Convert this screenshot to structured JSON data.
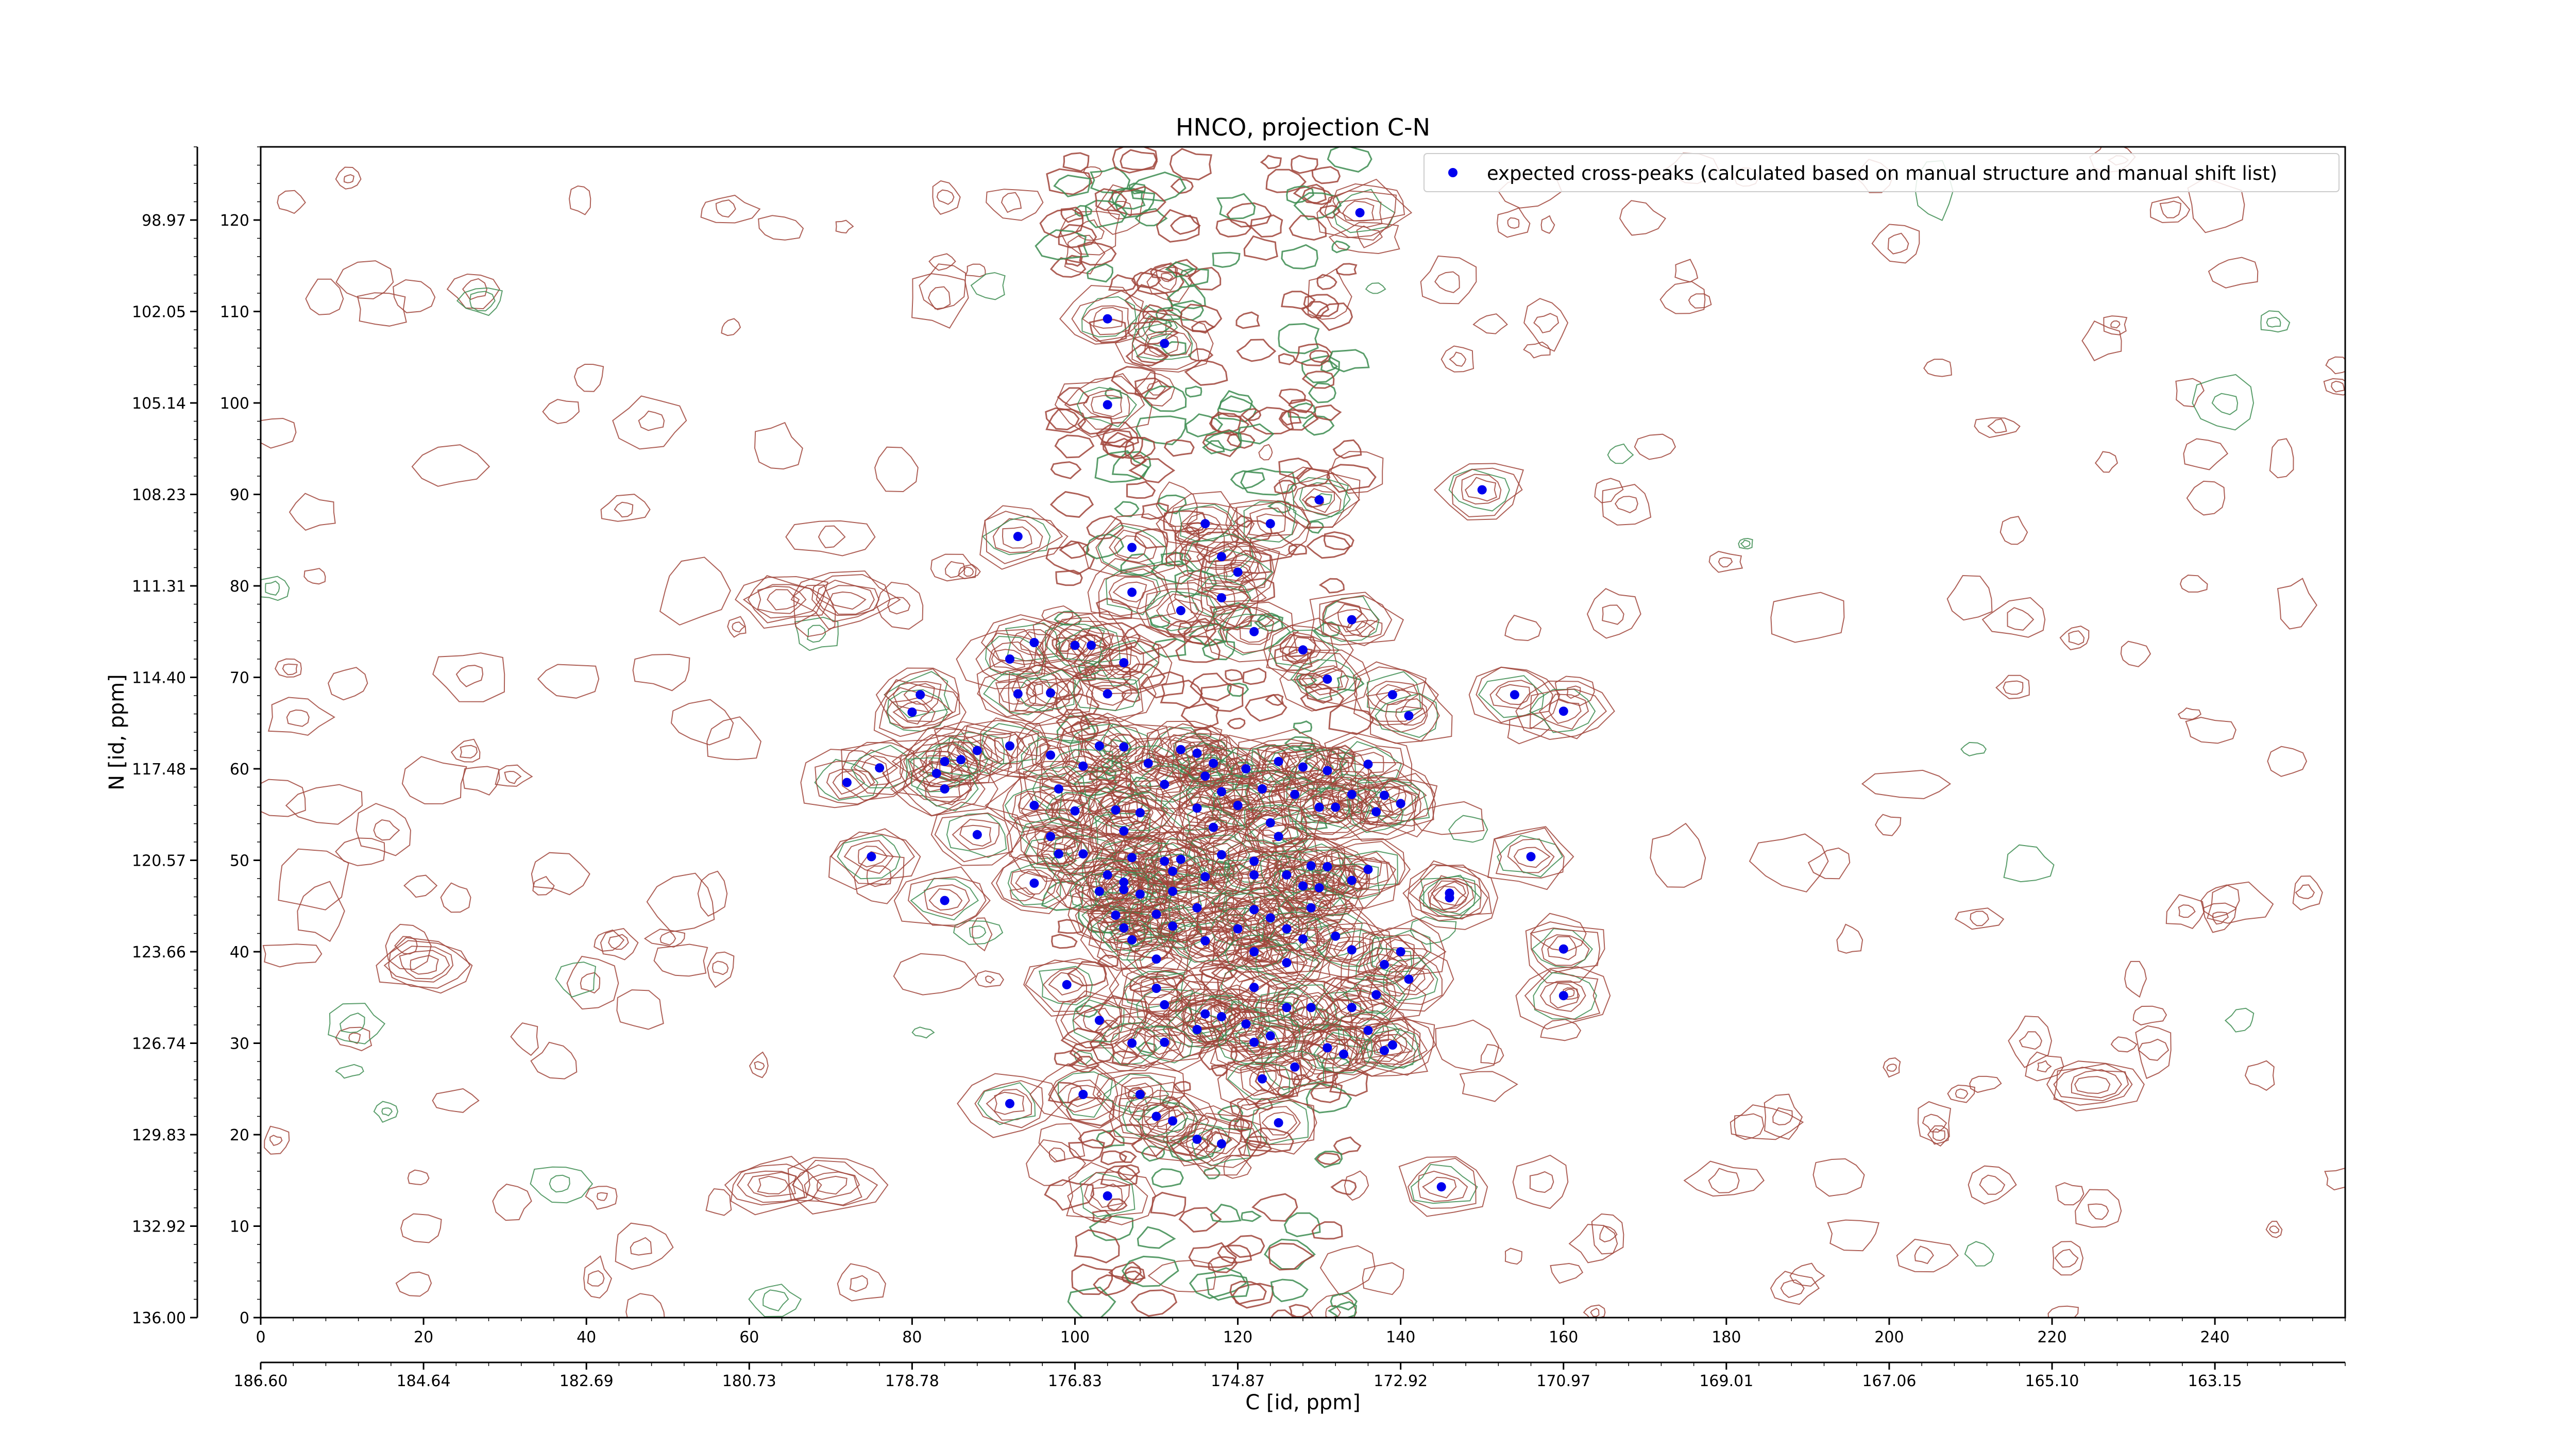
{
  "chart_data": {
    "type": "scatter",
    "title": "HNCO, projection C-N",
    "xlabel": "C [id, ppm]",
    "ylabel": "N [id, ppm]",
    "xlim": [
      0,
      256
    ],
    "ylim": [
      0,
      128
    ],
    "x_ticks": [
      0,
      20,
      40,
      60,
      80,
      100,
      120,
      140,
      160,
      180,
      200,
      220,
      240
    ],
    "y_ticks": [
      0,
      10,
      20,
      30,
      40,
      50,
      60,
      70,
      80,
      90,
      100,
      110,
      120
    ],
    "x_ppm_ticks": [
      "186.60",
      "184.64",
      "182.69",
      "180.73",
      "178.78",
      "176.83",
      "174.87",
      "172.92",
      "170.97",
      "169.01",
      "167.06",
      "165.10",
      "163.15"
    ],
    "y_ppm_ticks": [
      "136.00",
      "132.92",
      "129.83",
      "126.74",
      "123.66",
      "120.57",
      "117.48",
      "114.40",
      "111.31",
      "108.23",
      "105.14",
      "102.05",
      "98.97"
    ],
    "legend": {
      "label": "expected cross-peaks (calculated based on manual structure and manual shift list)",
      "position": "top-right"
    },
    "grid": false,
    "colors": {
      "peaks": "#0000ee",
      "positive_contour": "#a0443a",
      "negative_contour": "#3c8c50"
    },
    "series": [
      {
        "name": "expected cross-peaks (calculated based on manual structure and manual shift list)",
        "points": [
          [
            135,
            120.8
          ],
          [
            104,
            109.2
          ],
          [
            111,
            106.5
          ],
          [
            104,
            99.8
          ],
          [
            150,
            90.5
          ],
          [
            130,
            89.4
          ],
          [
            93,
            85.4
          ],
          [
            116,
            86.8
          ],
          [
            124,
            86.8
          ],
          [
            107,
            84.2
          ],
          [
            118,
            83.2
          ],
          [
            107,
            79.3
          ],
          [
            120,
            81.5
          ],
          [
            118,
            78.7
          ],
          [
            113,
            77.3
          ],
          [
            134,
            76.3
          ],
          [
            95,
            73.8
          ],
          [
            100,
            73.5
          ],
          [
            102,
            73.5
          ],
          [
            92,
            72.0
          ],
          [
            122,
            75.0
          ],
          [
            128,
            73.0
          ],
          [
            106,
            71.6
          ],
          [
            131,
            69.8
          ],
          [
            81,
            68.1
          ],
          [
            93,
            68.2
          ],
          [
            97,
            68.3
          ],
          [
            104,
            68.2
          ],
          [
            139,
            68.1
          ],
          [
            154,
            68.1
          ],
          [
            80,
            66.2
          ],
          [
            141,
            65.8
          ],
          [
            160,
            66.3
          ],
          [
            88,
            62.0
          ],
          [
            92,
            62.5
          ],
          [
            84,
            60.8
          ],
          [
            86,
            61.0
          ],
          [
            97,
            61.5
          ],
          [
            103,
            62.5
          ],
          [
            106,
            62.4
          ],
          [
            113,
            62.1
          ],
          [
            115,
            61.7
          ],
          [
            116,
            59.2
          ],
          [
            72,
            58.5
          ],
          [
            76,
            60.1
          ],
          [
            83,
            59.5
          ],
          [
            101,
            60.3
          ],
          [
            109,
            60.6
          ],
          [
            117,
            60.6
          ],
          [
            121,
            60.0
          ],
          [
            125,
            60.8
          ],
          [
            128,
            60.2
          ],
          [
            131,
            59.8
          ],
          [
            136,
            60.5
          ],
          [
            84,
            57.8
          ],
          [
            98,
            57.8
          ],
          [
            111,
            58.3
          ],
          [
            118,
            57.5
          ],
          [
            123,
            57.8
          ],
          [
            127,
            57.2
          ],
          [
            134,
            57.2
          ],
          [
            138,
            57.1
          ],
          [
            95,
            56.0
          ],
          [
            100,
            55.4
          ],
          [
            105,
            55.5
          ],
          [
            108,
            55.2
          ],
          [
            115,
            55.7
          ],
          [
            120,
            56.0
          ],
          [
            130,
            55.8
          ],
          [
            132,
            55.8
          ],
          [
            140,
            56.2
          ],
          [
            124,
            54.1
          ],
          [
            88,
            52.8
          ],
          [
            97,
            52.6
          ],
          [
            106,
            53.2
          ],
          [
            117,
            53.6
          ],
          [
            125,
            52.6
          ],
          [
            137,
            55.3
          ],
          [
            75,
            50.4
          ],
          [
            98,
            50.7
          ],
          [
            101,
            50.7
          ],
          [
            107,
            50.3
          ],
          [
            111,
            49.9
          ],
          [
            113,
            50.1
          ],
          [
            118,
            50.6
          ],
          [
            122,
            49.9
          ],
          [
            129,
            49.4
          ],
          [
            131,
            49.3
          ],
          [
            136,
            49.0
          ],
          [
            156,
            50.4
          ],
          [
            95,
            47.5
          ],
          [
            104,
            48.4
          ],
          [
            106,
            47.6
          ],
          [
            112,
            48.8
          ],
          [
            116,
            48.2
          ],
          [
            122,
            48.4
          ],
          [
            126,
            48.4
          ],
          [
            134,
            47.8
          ],
          [
            84,
            45.6
          ],
          [
            103,
            46.6
          ],
          [
            106,
            46.8
          ],
          [
            108,
            46.3
          ],
          [
            112,
            46.6
          ],
          [
            128,
            47.2
          ],
          [
            130,
            47.0
          ],
          [
            146,
            46.4
          ],
          [
            105,
            44.0
          ],
          [
            110,
            44.1
          ],
          [
            115,
            44.8
          ],
          [
            122,
            44.6
          ],
          [
            124,
            43.7
          ],
          [
            129,
            44.8
          ],
          [
            106,
            42.6
          ],
          [
            112,
            42.8
          ],
          [
            120,
            42.5
          ],
          [
            126,
            42.5
          ],
          [
            132,
            41.7
          ],
          [
            107,
            41.3
          ],
          [
            116,
            41.2
          ],
          [
            122,
            40.0
          ],
          [
            128,
            41.4
          ],
          [
            134,
            40.2
          ],
          [
            140,
            40.0
          ],
          [
            160,
            40.3
          ],
          [
            110,
            39.2
          ],
          [
            126,
            38.8
          ],
          [
            138,
            38.6
          ],
          [
            146,
            45.9
          ],
          [
            99,
            36.4
          ],
          [
            110,
            36.0
          ],
          [
            122,
            36.1
          ],
          [
            141,
            37.0
          ],
          [
            160,
            35.2
          ],
          [
            111,
            34.2
          ],
          [
            116,
            33.2
          ],
          [
            118,
            32.9
          ],
          [
            121,
            32.1
          ],
          [
            126,
            33.9
          ],
          [
            129,
            33.9
          ],
          [
            134,
            33.9
          ],
          [
            137,
            35.3
          ],
          [
            103,
            32.5
          ],
          [
            115,
            31.5
          ],
          [
            124,
            30.8
          ],
          [
            131,
            29.5
          ],
          [
            136,
            31.4
          ],
          [
            107,
            30.0
          ],
          [
            111,
            30.1
          ],
          [
            122,
            30.1
          ],
          [
            138,
            29.2
          ],
          [
            133,
            28.8
          ],
          [
            139,
            29.8
          ],
          [
            127,
            27.4
          ],
          [
            123,
            26.1
          ],
          [
            92,
            23.4
          ],
          [
            101,
            24.4
          ],
          [
            108,
            24.4
          ],
          [
            112,
            21.5
          ],
          [
            115,
            19.5
          ],
          [
            118,
            19.0
          ],
          [
            125,
            21.3
          ],
          [
            110,
            22.0
          ],
          [
            104,
            13.3
          ],
          [
            145,
            14.3
          ]
        ]
      }
    ]
  }
}
